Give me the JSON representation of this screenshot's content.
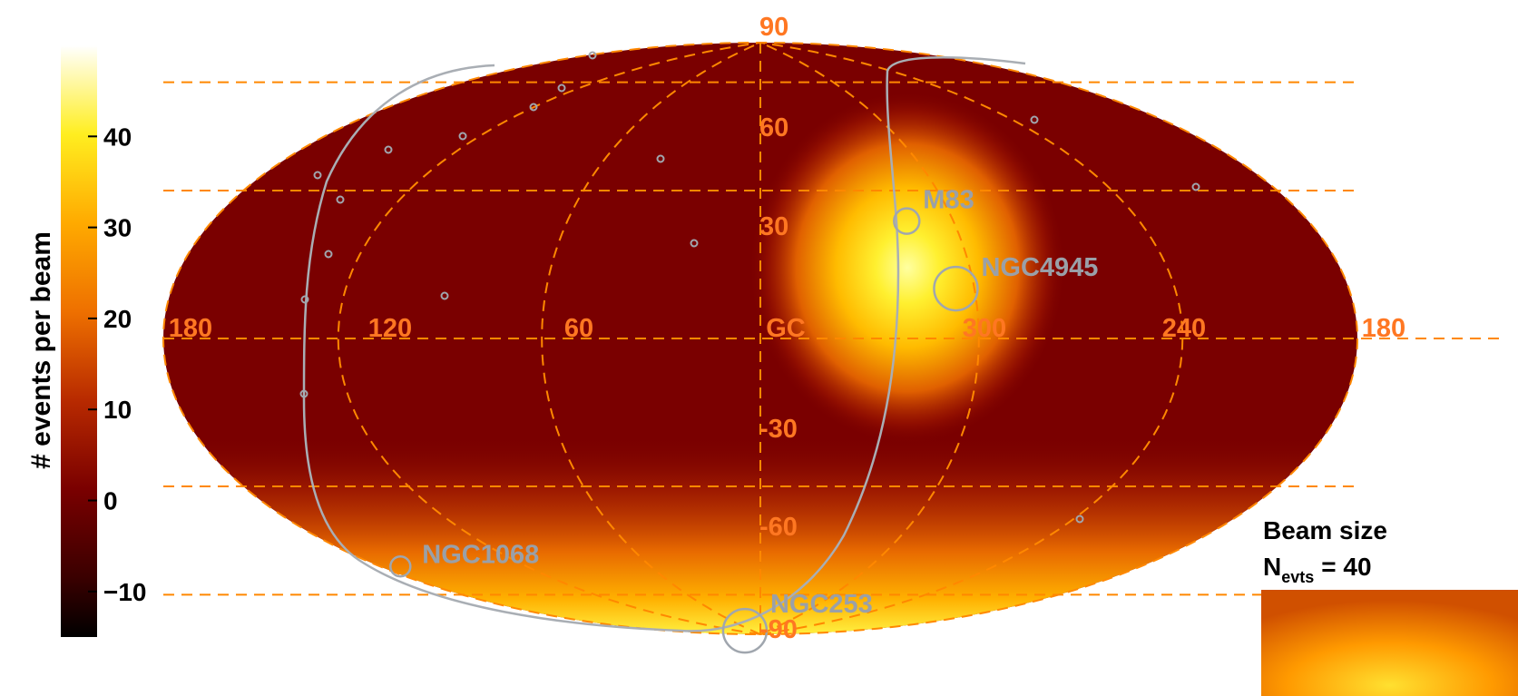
{
  "chart_data": {
    "type": "heatmap",
    "projection": "hammer-aitoff",
    "coordinate_frame": "galactic",
    "longitude_labels": [
      "180",
      "120",
      "60",
      "GC",
      "300",
      "240",
      "180"
    ],
    "latitude_labels": [
      "90",
      "60",
      "30",
      "-30",
      "-60",
      "-90"
    ],
    "longitude_lines": [
      -120,
      -60,
      0,
      60,
      120
    ],
    "latitude_lines": [
      -60,
      -30,
      0,
      30,
      60
    ],
    "colorbar": {
      "label": "# events per beam",
      "ticks": [
        "40",
        "30",
        "20",
        "10",
        "0",
        "−10"
      ],
      "tick_values": [
        40,
        30,
        20,
        10,
        0,
        -10
      ],
      "range": [
        -15,
        50
      ],
      "colormap": [
        "#000000",
        "#7a0000",
        "#d44000",
        "#ff9900",
        "#ffee00",
        "#ffffff"
      ]
    },
    "hotspot": {
      "l": 305,
      "b": 16,
      "peak_events": 48
    },
    "sources": [
      {
        "name": "M83",
        "l": 314.6,
        "b": 32.0
      },
      {
        "name": "NGC4945",
        "l": 305.3,
        "b": 13.3
      },
      {
        "name": "NGC1068",
        "l": 172.1,
        "b": -51.9
      },
      {
        "name": "NGC253",
        "l": 97.4,
        "b": -88.0
      }
    ],
    "beam": {
      "label": "Beam size",
      "n_symbol": "N",
      "n_subscript": "evts",
      "n_value": "= 40"
    }
  },
  "colors": {
    "grid": "#ff8800",
    "grid_text": "#ff7722",
    "source_text": "#9aa0a8",
    "source_circle": "#a0a6ae",
    "fov_line": "#a9aeb4"
  }
}
